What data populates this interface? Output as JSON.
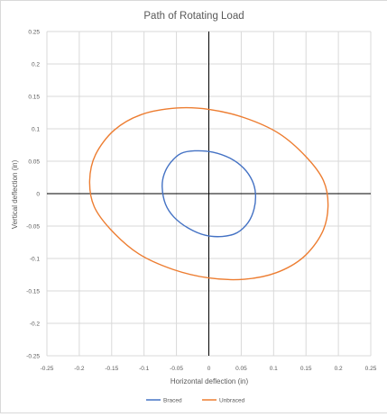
{
  "chart_data": {
    "type": "line",
    "title": "Path of Rotating Load",
    "xlabel": "Horizontal deflection (in)",
    "ylabel": "Vertical deflection (in)",
    "xlim": [
      -0.25,
      0.25
    ],
    "ylim": [
      -0.25,
      0.25
    ],
    "x_ticks": [
      "-0.25",
      "-0.2",
      "-0.15",
      "-0.1",
      "-0.05",
      "0",
      "0.05",
      "0.1",
      "0.15",
      "0.2",
      "0.25"
    ],
    "y_ticks": [
      "0.25",
      "0.2",
      "0.15",
      "0.1",
      "0.05",
      "0",
      "-0.05",
      "-0.1",
      "-0.15",
      "-0.2",
      "-0.25"
    ],
    "grid": true,
    "legend_position": "bottom",
    "series": [
      {
        "name": "Braced",
        "color": "#4472c4",
        "x": [
          0.072,
          0.07,
          0.061,
          0.044,
          0.021,
          -0.006,
          -0.032,
          -0.054,
          -0.067,
          -0.072,
          -0.069,
          -0.059,
          -0.043,
          -0.022,
          0.006,
          0.034,
          0.054,
          0.067,
          0.072
        ],
        "y": [
          0.0,
          -0.023,
          -0.044,
          -0.06,
          -0.066,
          -0.064,
          -0.053,
          -0.036,
          -0.016,
          0.01,
          0.03,
          0.048,
          0.062,
          0.066,
          0.064,
          0.054,
          0.039,
          0.02,
          0.0
        ]
      },
      {
        "name": "Unbraced",
        "color": "#ed7d31",
        "x": [
          0.184,
          0.175,
          0.146,
          0.104,
          0.055,
          0.0,
          -0.055,
          -0.108,
          -0.15,
          -0.177,
          -0.184,
          -0.175,
          -0.146,
          -0.104,
          -0.05,
          0.0,
          0.055,
          0.108,
          0.15,
          0.177,
          0.184
        ],
        "y": [
          -0.02,
          -0.06,
          -0.098,
          -0.122,
          -0.132,
          -0.13,
          -0.117,
          -0.093,
          -0.057,
          -0.02,
          0.02,
          0.06,
          0.098,
          0.122,
          0.132,
          0.13,
          0.117,
          0.093,
          0.057,
          0.02,
          -0.02
        ]
      }
    ]
  }
}
